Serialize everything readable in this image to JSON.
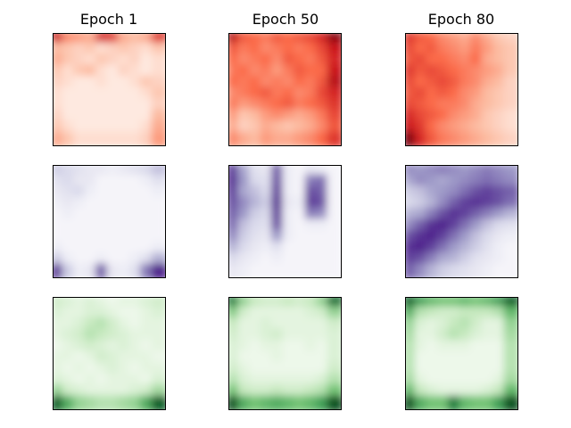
{
  "chart_data": {
    "type": "heatmap",
    "column_titles": [
      "Epoch 1",
      "Epoch 50",
      "Epoch 80"
    ],
    "colormaps": [
      "Reds",
      "Purples",
      "Greens"
    ],
    "colormap_colors": {
      "Reds": [
        "#fff5f0",
        "#fcbba1",
        "#fb6a4a",
        "#cb181d",
        "#67000d"
      ],
      "Purples": [
        "#fcfbfd",
        "#dadaeb",
        "#9e9ac8",
        "#6a51a3",
        "#3f007d"
      ],
      "Greens": [
        "#f7fcf5",
        "#c7e9c0",
        "#74c476",
        "#238b45",
        "#00441b"
      ]
    },
    "grid_size": 10,
    "panels": [
      {
        "row": 0,
        "col": 0,
        "title": "Epoch 1",
        "cmap": "Reds",
        "matrix": [
          [
            0.75,
            0.4,
            0.35,
            0.3,
            0.7,
            0.65,
            0.3,
            0.25,
            0.3,
            0.65
          ],
          [
            0.25,
            0.2,
            0.15,
            0.2,
            0.1,
            0.15,
            0.2,
            0.15,
            0.1,
            0.2
          ],
          [
            0.3,
            0.2,
            0.15,
            0.1,
            0.2,
            0.15,
            0.1,
            0.15,
            0.05,
            0.1
          ],
          [
            0.2,
            0.1,
            0.2,
            0.25,
            0.1,
            0.05,
            0.15,
            0.1,
            0.05,
            0.1
          ],
          [
            0.15,
            0.1,
            0.05,
            0.05,
            0.1,
            0.05,
            0.05,
            0.1,
            0.2,
            0.15
          ],
          [
            0.1,
            0.05,
            0.05,
            0.05,
            0.05,
            0.05,
            0.05,
            0.05,
            0.1,
            0.2
          ],
          [
            0.1,
            0.05,
            0.05,
            0.05,
            0.05,
            0.05,
            0.05,
            0.05,
            0.05,
            0.15
          ],
          [
            0.15,
            0.05,
            0.05,
            0.05,
            0.05,
            0.05,
            0.05,
            0.05,
            0.05,
            0.25
          ],
          [
            0.2,
            0.1,
            0.05,
            0.05,
            0.05,
            0.05,
            0.05,
            0.05,
            0.1,
            0.3
          ],
          [
            0.3,
            0.2,
            0.1,
            0.1,
            0.1,
            0.1,
            0.1,
            0.1,
            0.15,
            0.35
          ]
        ]
      },
      {
        "row": 0,
        "col": 1,
        "title": "Epoch 50",
        "cmap": "Reds",
        "matrix": [
          [
            0.8,
            0.55,
            0.5,
            0.45,
            0.55,
            0.5,
            0.55,
            0.6,
            0.7,
            0.9
          ],
          [
            0.55,
            0.45,
            0.5,
            0.4,
            0.45,
            0.5,
            0.45,
            0.5,
            0.6,
            0.75
          ],
          [
            0.5,
            0.4,
            0.45,
            0.5,
            0.4,
            0.55,
            0.5,
            0.45,
            0.55,
            0.7
          ],
          [
            0.45,
            0.5,
            0.4,
            0.45,
            0.35,
            0.45,
            0.55,
            0.5,
            0.5,
            0.75
          ],
          [
            0.5,
            0.45,
            0.5,
            0.4,
            0.45,
            0.4,
            0.5,
            0.45,
            0.55,
            0.8
          ],
          [
            0.4,
            0.45,
            0.5,
            0.55,
            0.45,
            0.5,
            0.4,
            0.45,
            0.6,
            0.7
          ],
          [
            0.45,
            0.35,
            0.4,
            0.45,
            0.5,
            0.55,
            0.45,
            0.5,
            0.55,
            0.65
          ],
          [
            0.35,
            0.2,
            0.25,
            0.35,
            0.4,
            0.35,
            0.3,
            0.35,
            0.45,
            0.6
          ],
          [
            0.3,
            0.15,
            0.2,
            0.3,
            0.25,
            0.2,
            0.25,
            0.3,
            0.4,
            0.55
          ],
          [
            0.4,
            0.3,
            0.25,
            0.35,
            0.3,
            0.3,
            0.35,
            0.4,
            0.5,
            0.65
          ]
        ]
      },
      {
        "row": 0,
        "col": 2,
        "title": "Epoch 80",
        "cmap": "Reds",
        "matrix": [
          [
            0.65,
            0.55,
            0.5,
            0.4,
            0.35,
            0.3,
            0.4,
            0.3,
            0.2,
            0.15
          ],
          [
            0.6,
            0.5,
            0.55,
            0.45,
            0.4,
            0.35,
            0.45,
            0.35,
            0.25,
            0.2
          ],
          [
            0.55,
            0.6,
            0.5,
            0.5,
            0.45,
            0.4,
            0.5,
            0.3,
            0.25,
            0.2
          ],
          [
            0.65,
            0.55,
            0.6,
            0.55,
            0.5,
            0.45,
            0.4,
            0.35,
            0.3,
            0.2
          ],
          [
            0.6,
            0.5,
            0.55,
            0.6,
            0.55,
            0.45,
            0.4,
            0.3,
            0.25,
            0.15
          ],
          [
            0.55,
            0.6,
            0.5,
            0.55,
            0.5,
            0.4,
            0.35,
            0.25,
            0.2,
            0.15
          ],
          [
            0.6,
            0.55,
            0.5,
            0.45,
            0.45,
            0.4,
            0.3,
            0.25,
            0.2,
            0.15
          ],
          [
            0.7,
            0.6,
            0.55,
            0.5,
            0.4,
            0.35,
            0.3,
            0.2,
            0.15,
            0.1
          ],
          [
            0.75,
            0.65,
            0.5,
            0.4,
            0.35,
            0.3,
            0.25,
            0.2,
            0.15,
            0.1
          ],
          [
            0.95,
            0.7,
            0.55,
            0.45,
            0.4,
            0.35,
            0.3,
            0.25,
            0.2,
            0.15
          ]
        ]
      },
      {
        "row": 1,
        "col": 0,
        "title": "",
        "cmap": "Purples",
        "matrix": [
          [
            0.3,
            0.25,
            0.2,
            0.15,
            0.15,
            0.1,
            0.15,
            0.2,
            0.25,
            0.35
          ],
          [
            0.2,
            0.25,
            0.15,
            0.15,
            0.05,
            0.05,
            0.05,
            0.05,
            0.1,
            0.2
          ],
          [
            0.15,
            0.2,
            0.25,
            0.1,
            0.05,
            0.05,
            0.05,
            0.05,
            0.05,
            0.1
          ],
          [
            0.1,
            0.15,
            0.1,
            0.05,
            0.05,
            0.05,
            0.05,
            0.05,
            0.05,
            0.05
          ],
          [
            0.05,
            0.1,
            0.05,
            0.05,
            0.05,
            0.05,
            0.05,
            0.05,
            0.05,
            0.05
          ],
          [
            0.05,
            0.05,
            0.05,
            0.05,
            0.05,
            0.05,
            0.05,
            0.05,
            0.05,
            0.05
          ],
          [
            0.05,
            0.05,
            0.05,
            0.05,
            0.05,
            0.05,
            0.05,
            0.05,
            0.05,
            0.05
          ],
          [
            0.1,
            0.05,
            0.05,
            0.05,
            0.05,
            0.05,
            0.05,
            0.05,
            0.05,
            0.1
          ],
          [
            0.3,
            0.1,
            0.05,
            0.05,
            0.1,
            0.05,
            0.05,
            0.1,
            0.2,
            0.4
          ],
          [
            0.8,
            0.3,
            0.1,
            0.15,
            0.7,
            0.15,
            0.1,
            0.2,
            0.6,
            0.9
          ]
        ]
      },
      {
        "row": 1,
        "col": 1,
        "title": "",
        "cmap": "Purples",
        "matrix": [
          [
            0.8,
            0.45,
            0.2,
            0.15,
            0.7,
            0.1,
            0.05,
            0.15,
            0.1,
            0.05
          ],
          [
            0.85,
            0.5,
            0.25,
            0.2,
            0.75,
            0.1,
            0.05,
            0.6,
            0.65,
            0.05
          ],
          [
            0.8,
            0.45,
            0.35,
            0.25,
            0.8,
            0.1,
            0.05,
            0.75,
            0.7,
            0.05
          ],
          [
            0.75,
            0.55,
            0.4,
            0.3,
            0.85,
            0.15,
            0.1,
            0.8,
            0.75,
            0.05
          ],
          [
            0.7,
            0.5,
            0.3,
            0.25,
            0.8,
            0.1,
            0.05,
            0.6,
            0.55,
            0.05
          ],
          [
            0.65,
            0.35,
            0.25,
            0.2,
            0.75,
            0.1,
            0.05,
            0.1,
            0.1,
            0.05
          ],
          [
            0.55,
            0.3,
            0.2,
            0.15,
            0.5,
            0.1,
            0.05,
            0.05,
            0.05,
            0.05
          ],
          [
            0.4,
            0.25,
            0.15,
            0.1,
            0.2,
            0.05,
            0.05,
            0.05,
            0.05,
            0.05
          ],
          [
            0.25,
            0.15,
            0.1,
            0.05,
            0.1,
            0.05,
            0.05,
            0.05,
            0.05,
            0.05
          ],
          [
            0.15,
            0.1,
            0.05,
            0.05,
            0.05,
            0.05,
            0.05,
            0.05,
            0.05,
            0.05
          ]
        ]
      },
      {
        "row": 1,
        "col": 2,
        "title": "",
        "cmap": "Purples",
        "matrix": [
          [
            0.55,
            0.5,
            0.55,
            0.6,
            0.55,
            0.5,
            0.55,
            0.6,
            0.55,
            0.5
          ],
          [
            0.45,
            0.55,
            0.5,
            0.45,
            0.5,
            0.55,
            0.6,
            0.65,
            0.6,
            0.55
          ],
          [
            0.3,
            0.35,
            0.45,
            0.5,
            0.55,
            0.65,
            0.75,
            0.8,
            0.75,
            0.7
          ],
          [
            0.25,
            0.3,
            0.4,
            0.55,
            0.7,
            0.8,
            0.85,
            0.8,
            0.75,
            0.65
          ],
          [
            0.4,
            0.45,
            0.6,
            0.75,
            0.85,
            0.8,
            0.7,
            0.6,
            0.5,
            0.4
          ],
          [
            0.55,
            0.7,
            0.85,
            0.9,
            0.8,
            0.65,
            0.5,
            0.35,
            0.25,
            0.2
          ],
          [
            0.75,
            0.85,
            0.9,
            0.8,
            0.65,
            0.5,
            0.35,
            0.25,
            0.15,
            0.1
          ],
          [
            0.85,
            0.9,
            0.8,
            0.65,
            0.5,
            0.4,
            0.3,
            0.2,
            0.1,
            0.05
          ],
          [
            0.8,
            0.75,
            0.6,
            0.45,
            0.4,
            0.3,
            0.2,
            0.15,
            0.1,
            0.05
          ],
          [
            0.7,
            0.55,
            0.4,
            0.3,
            0.25,
            0.2,
            0.15,
            0.1,
            0.05,
            0.05
          ]
        ]
      },
      {
        "row": 2,
        "col": 0,
        "title": "",
        "cmap": "Greens",
        "matrix": [
          [
            0.2,
            0.15,
            0.1,
            0.15,
            0.1,
            0.05,
            0.1,
            0.1,
            0.15,
            0.2
          ],
          [
            0.15,
            0.1,
            0.1,
            0.15,
            0.15,
            0.1,
            0.05,
            0.05,
            0.1,
            0.15
          ],
          [
            0.1,
            0.1,
            0.15,
            0.25,
            0.3,
            0.2,
            0.1,
            0.05,
            0.1,
            0.1
          ],
          [
            0.1,
            0.15,
            0.2,
            0.3,
            0.25,
            0.2,
            0.15,
            0.1,
            0.1,
            0.1
          ],
          [
            0.05,
            0.1,
            0.15,
            0.2,
            0.15,
            0.1,
            0.15,
            0.1,
            0.05,
            0.1
          ],
          [
            0.1,
            0.1,
            0.05,
            0.1,
            0.2,
            0.15,
            0.1,
            0.1,
            0.1,
            0.05
          ],
          [
            0.1,
            0.05,
            0.1,
            0.05,
            0.1,
            0.15,
            0.1,
            0.05,
            0.1,
            0.1
          ],
          [
            0.15,
            0.1,
            0.05,
            0.1,
            0.05,
            0.1,
            0.1,
            0.1,
            0.05,
            0.15
          ],
          [
            0.4,
            0.2,
            0.15,
            0.1,
            0.1,
            0.1,
            0.1,
            0.15,
            0.2,
            0.35
          ],
          [
            0.9,
            0.6,
            0.4,
            0.35,
            0.3,
            0.3,
            0.35,
            0.4,
            0.6,
            0.9
          ]
        ]
      },
      {
        "row": 2,
        "col": 1,
        "title": "",
        "cmap": "Greens",
        "matrix": [
          [
            0.8,
            0.4,
            0.25,
            0.2,
            0.2,
            0.25,
            0.2,
            0.25,
            0.4,
            0.85
          ],
          [
            0.45,
            0.2,
            0.1,
            0.1,
            0.1,
            0.1,
            0.1,
            0.15,
            0.2,
            0.4
          ],
          [
            0.25,
            0.1,
            0.1,
            0.15,
            0.1,
            0.1,
            0.1,
            0.1,
            0.1,
            0.2
          ],
          [
            0.2,
            0.1,
            0.1,
            0.15,
            0.2,
            0.1,
            0.1,
            0.1,
            0.1,
            0.15
          ],
          [
            0.15,
            0.1,
            0.05,
            0.1,
            0.1,
            0.05,
            0.05,
            0.1,
            0.05,
            0.15
          ],
          [
            0.15,
            0.05,
            0.05,
            0.05,
            0.1,
            0.05,
            0.05,
            0.05,
            0.05,
            0.15
          ],
          [
            0.2,
            0.1,
            0.05,
            0.05,
            0.05,
            0.05,
            0.05,
            0.05,
            0.05,
            0.2
          ],
          [
            0.3,
            0.15,
            0.1,
            0.1,
            0.1,
            0.1,
            0.1,
            0.1,
            0.15,
            0.3
          ],
          [
            0.5,
            0.25,
            0.2,
            0.2,
            0.25,
            0.2,
            0.2,
            0.25,
            0.3,
            0.5
          ],
          [
            0.95,
            0.6,
            0.5,
            0.55,
            0.6,
            0.55,
            0.5,
            0.55,
            0.65,
            0.95
          ]
        ]
      },
      {
        "row": 2,
        "col": 2,
        "title": "",
        "cmap": "Greens",
        "matrix": [
          [
            0.9,
            0.65,
            0.55,
            0.5,
            0.5,
            0.55,
            0.5,
            0.55,
            0.65,
            0.9
          ],
          [
            0.6,
            0.3,
            0.25,
            0.2,
            0.2,
            0.25,
            0.25,
            0.25,
            0.3,
            0.55
          ],
          [
            0.4,
            0.15,
            0.1,
            0.15,
            0.25,
            0.3,
            0.2,
            0.1,
            0.1,
            0.4
          ],
          [
            0.35,
            0.1,
            0.1,
            0.2,
            0.3,
            0.25,
            0.15,
            0.1,
            0.1,
            0.35
          ],
          [
            0.3,
            0.1,
            0.05,
            0.1,
            0.1,
            0.1,
            0.05,
            0.05,
            0.05,
            0.3
          ],
          [
            0.3,
            0.05,
            0.05,
            0.05,
            0.05,
            0.05,
            0.05,
            0.05,
            0.05,
            0.3
          ],
          [
            0.3,
            0.05,
            0.05,
            0.05,
            0.05,
            0.05,
            0.05,
            0.05,
            0.05,
            0.3
          ],
          [
            0.35,
            0.1,
            0.05,
            0.05,
            0.05,
            0.05,
            0.05,
            0.05,
            0.1,
            0.35
          ],
          [
            0.55,
            0.25,
            0.15,
            0.1,
            0.1,
            0.1,
            0.1,
            0.15,
            0.25,
            0.55
          ],
          [
            0.95,
            0.6,
            0.5,
            0.5,
            0.8,
            0.55,
            0.5,
            0.5,
            0.65,
            0.95
          ]
        ]
      }
    ]
  }
}
